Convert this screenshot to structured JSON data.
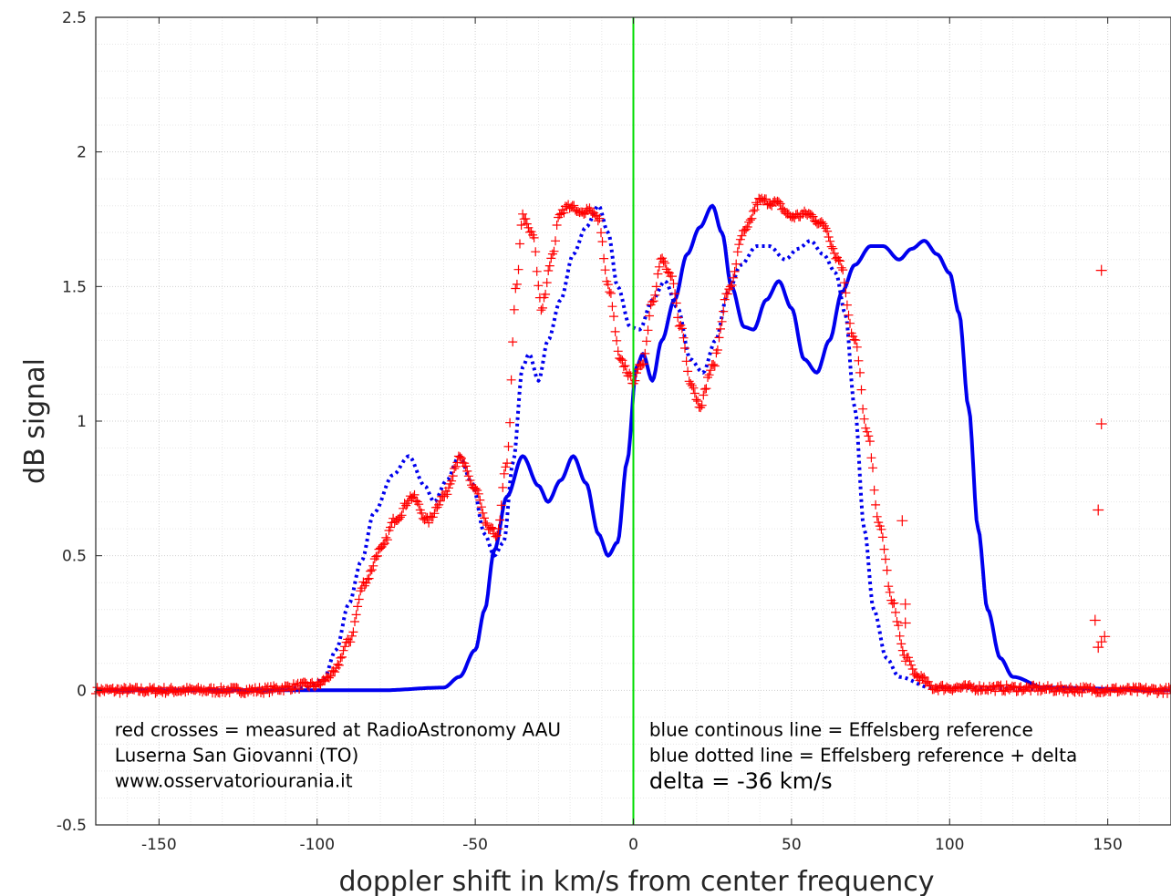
{
  "chart_data": {
    "type": "line",
    "xlabel": "doppler shift in km/s from center frequency",
    "ylabel": "dB signal",
    "xlim": [
      -170,
      170
    ],
    "ylim": [
      -0.5,
      2.5
    ],
    "xticks": [
      -150,
      -100,
      -50,
      0,
      50,
      100,
      150
    ],
    "yticks": [
      -0.5,
      0,
      0.5,
      1,
      1.5,
      2,
      2.5
    ],
    "xtick_labels": [
      "-150",
      "-100",
      "-50",
      "0",
      "50",
      "100",
      "150"
    ],
    "ytick_labels": [
      "-0.5",
      "0",
      "0.5",
      "1",
      "1.5",
      "2",
      "2.5"
    ],
    "grid": true,
    "minor_grid": true,
    "vertical_line": {
      "x": 0,
      "color": "#00dd00"
    },
    "colors": {
      "measured": "#ff0000",
      "reference": "#0000ee"
    },
    "series": [
      {
        "key": "measured",
        "style": "markers-plus",
        "points": [
          [
            -170,
            0
          ],
          [
            -120,
            0
          ],
          [
            -100,
            0.02
          ],
          [
            -95,
            0.06
          ],
          [
            -90,
            0.18
          ],
          [
            -85,
            0.4
          ],
          [
            -80,
            0.52
          ],
          [
            -75,
            0.64
          ],
          [
            -70,
            0.72
          ],
          [
            -65,
            0.63
          ],
          [
            -60,
            0.72
          ],
          [
            -55,
            0.86
          ],
          [
            -50,
            0.75
          ],
          [
            -46,
            0.6
          ],
          [
            -43,
            0.58
          ],
          [
            -40,
            0.85
          ],
          [
            -37,
            1.5
          ],
          [
            -35,
            1.76
          ],
          [
            -32,
            1.7
          ],
          [
            -29,
            1.42
          ],
          [
            -26,
            1.6
          ],
          [
            -23,
            1.78
          ],
          [
            -20,
            1.8
          ],
          [
            -17,
            1.77
          ],
          [
            -14,
            1.79
          ],
          [
            -11,
            1.75
          ],
          [
            -8,
            1.5
          ],
          [
            -4,
            1.22
          ],
          [
            0,
            1.15
          ],
          [
            3,
            1.22
          ],
          [
            6,
            1.45
          ],
          [
            9,
            1.6
          ],
          [
            12,
            1.53
          ],
          [
            15,
            1.35
          ],
          [
            18,
            1.15
          ],
          [
            21,
            1.06
          ],
          [
            25,
            1.2
          ],
          [
            30,
            1.48
          ],
          [
            35,
            1.7
          ],
          [
            40,
            1.82
          ],
          [
            45,
            1.81
          ],
          [
            50,
            1.76
          ],
          [
            55,
            1.77
          ],
          [
            60,
            1.73
          ],
          [
            65,
            1.6
          ],
          [
            70,
            1.3
          ],
          [
            74,
            0.95
          ],
          [
            78,
            0.6
          ],
          [
            82,
            0.32
          ],
          [
            86,
            0.12
          ],
          [
            90,
            0.05
          ],
          [
            95,
            0.01
          ],
          [
            170,
            0
          ]
        ]
      },
      {
        "key": "reference",
        "style": "solid",
        "points": [
          [
            -170,
            0
          ],
          [
            -80,
            0
          ],
          [
            -60,
            0.01
          ],
          [
            -55,
            0.05
          ],
          [
            -50,
            0.15
          ],
          [
            -47,
            0.3
          ],
          [
            -44,
            0.52
          ],
          [
            -40,
            0.72
          ],
          [
            -35,
            0.87
          ],
          [
            -30,
            0.76
          ],
          [
            -27,
            0.7
          ],
          [
            -23,
            0.78
          ],
          [
            -19,
            0.87
          ],
          [
            -15,
            0.77
          ],
          [
            -11,
            0.58
          ],
          [
            -8,
            0.5
          ],
          [
            -5,
            0.55
          ],
          [
            -2,
            0.85
          ],
          [
            1,
            1.2
          ],
          [
            3,
            1.25
          ],
          [
            6,
            1.15
          ],
          [
            9,
            1.3
          ],
          [
            13,
            1.45
          ],
          [
            17,
            1.62
          ],
          [
            21,
            1.72
          ],
          [
            25,
            1.8
          ],
          [
            28,
            1.7
          ],
          [
            31,
            1.5
          ],
          [
            35,
            1.35
          ],
          [
            38,
            1.34
          ],
          [
            42,
            1.45
          ],
          [
            46,
            1.52
          ],
          [
            50,
            1.42
          ],
          [
            54,
            1.23
          ],
          [
            58,
            1.18
          ],
          [
            62,
            1.3
          ],
          [
            66,
            1.48
          ],
          [
            70,
            1.58
          ],
          [
            75,
            1.65
          ],
          [
            79,
            1.65
          ],
          [
            84,
            1.6
          ],
          [
            88,
            1.64
          ],
          [
            92,
            1.67
          ],
          [
            96,
            1.62
          ],
          [
            100,
            1.55
          ],
          [
            103,
            1.4
          ],
          [
            106,
            1.05
          ],
          [
            109,
            0.6
          ],
          [
            112,
            0.3
          ],
          [
            116,
            0.12
          ],
          [
            120,
            0.05
          ],
          [
            130,
            0.01
          ],
          [
            170,
            0
          ]
        ]
      },
      {
        "key": "reference_delta",
        "style": "dotted",
        "points": [
          [
            -170,
            0
          ],
          [
            -116,
            0
          ],
          [
            -104,
            0.01
          ],
          [
            -98,
            0.04
          ],
          [
            -94,
            0.15
          ],
          [
            -90,
            0.32
          ],
          [
            -86,
            0.48
          ],
          [
            -82,
            0.66
          ],
          [
            -76,
            0.8
          ],
          [
            -71,
            0.87
          ],
          [
            -66,
            0.76
          ],
          [
            -63,
            0.7
          ],
          [
            -59,
            0.78
          ],
          [
            -55,
            0.87
          ],
          [
            -51,
            0.77
          ],
          [
            -47,
            0.58
          ],
          [
            -44,
            0.5
          ],
          [
            -41,
            0.55
          ],
          [
            -38,
            0.85
          ],
          [
            -35,
            1.2
          ],
          [
            -33,
            1.25
          ],
          [
            -30,
            1.15
          ],
          [
            -27,
            1.3
          ],
          [
            -23,
            1.45
          ],
          [
            -19,
            1.62
          ],
          [
            -15,
            1.72
          ],
          [
            -11,
            1.8
          ],
          [
            -8,
            1.7
          ],
          [
            -5,
            1.5
          ],
          [
            -1,
            1.35
          ],
          [
            2,
            1.34
          ],
          [
            6,
            1.45
          ],
          [
            10,
            1.52
          ],
          [
            14,
            1.42
          ],
          [
            18,
            1.23
          ],
          [
            22,
            1.18
          ],
          [
            26,
            1.3
          ],
          [
            30,
            1.48
          ],
          [
            34,
            1.58
          ],
          [
            39,
            1.65
          ],
          [
            43,
            1.65
          ],
          [
            48,
            1.6
          ],
          [
            52,
            1.64
          ],
          [
            56,
            1.67
          ],
          [
            60,
            1.62
          ],
          [
            64,
            1.55
          ],
          [
            67,
            1.4
          ],
          [
            70,
            1.05
          ],
          [
            73,
            0.6
          ],
          [
            76,
            0.3
          ],
          [
            80,
            0.12
          ],
          [
            84,
            0.05
          ],
          [
            94,
            0.01
          ],
          [
            170,
            0
          ]
        ]
      }
    ],
    "outliers": [
      [
        85,
        0.63
      ],
      [
        86,
        0.32
      ],
      [
        86,
        0.25
      ],
      [
        146,
        0.26
      ],
      [
        147,
        0.16
      ],
      [
        147,
        0.67
      ],
      [
        148,
        0.18
      ],
      [
        148,
        0.99
      ],
      [
        148,
        1.56
      ],
      [
        149,
        0.2
      ]
    ],
    "annotations": [
      {
        "key": "a1",
        "text": "red crosses = measured at RadioAstronomy AAU",
        "x": -164,
        "y": -0.17
      },
      {
        "key": "a2",
        "text": "Luserna San Giovanni (TO)",
        "x": -164,
        "y": -0.265
      },
      {
        "key": "a3",
        "text": "www.osservatoriourania.it",
        "x": -164,
        "y": -0.36
      },
      {
        "key": "a4",
        "text": "blue continous line = Effelsberg reference",
        "x": 5,
        "y": -0.17
      },
      {
        "key": "a5",
        "text": "blue dotted line = Effelsberg reference + delta",
        "x": 5,
        "y": -0.265
      },
      {
        "key": "a6",
        "text": "delta = -36 km/s",
        "x": 5,
        "y": -0.365,
        "big": true
      }
    ]
  }
}
